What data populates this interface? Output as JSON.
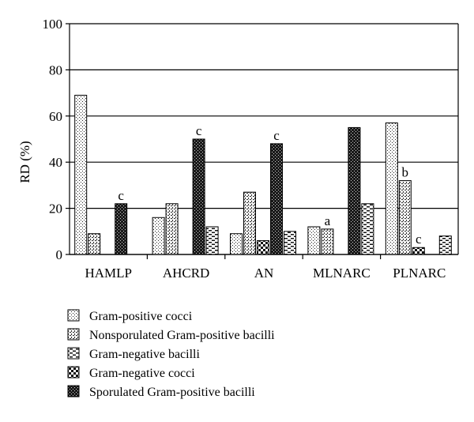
{
  "chart_data": {
    "type": "bar",
    "title": "",
    "xlabel": "",
    "ylabel": "RD (%)",
    "ylim": [
      0,
      100
    ],
    "yticks": [
      0,
      20,
      40,
      60,
      80,
      100
    ],
    "grid": true,
    "legend_position": "bottom",
    "categories": [
      "HAMLP",
      "AHCRD",
      "AN",
      "MLNARC",
      "PLNARC"
    ],
    "series_order_in_group": [
      "Gram-positive cocci",
      "Nonsporulated Gram-positive bacilli",
      "Gram-negative cocci",
      "Sporulated Gram-positive bacilli",
      "Gram-negative bacilli"
    ],
    "series": [
      {
        "name": "Gram-positive cocci",
        "pattern": "dots-fine",
        "values": [
          69,
          16,
          9,
          12,
          57
        ],
        "annotations": [
          null,
          null,
          null,
          null,
          null
        ]
      },
      {
        "name": "Nonsporulated Gram-positive bacilli",
        "pattern": "dots-medium",
        "values": [
          9,
          22,
          27,
          11,
          32
        ],
        "annotations": [
          null,
          null,
          null,
          "a",
          "b"
        ]
      },
      {
        "name": "Gram-negative cocci",
        "pattern": "checker",
        "values": [
          0,
          0,
          6,
          0,
          3
        ],
        "annotations": [
          null,
          null,
          null,
          null,
          "c"
        ]
      },
      {
        "name": "Sporulated Gram-positive bacilli",
        "pattern": "dots-dense",
        "values": [
          22,
          50,
          48,
          55,
          0
        ],
        "annotations": [
          "c",
          "c",
          "c",
          null,
          null
        ]
      },
      {
        "name": "Gram-negative bacilli",
        "pattern": "dashes",
        "values": [
          0,
          12,
          10,
          22,
          8
        ],
        "annotations": [
          null,
          null,
          null,
          null,
          null
        ]
      }
    ],
    "legend": [
      {
        "name": "Gram-positive cocci",
        "pattern": "dots-fine"
      },
      {
        "name": "Nonsporulated Gram-positive bacilli",
        "pattern": "dots-medium"
      },
      {
        "name": "Gram-negative bacilli",
        "pattern": "dashes"
      },
      {
        "name": "Gram-negative cocci",
        "pattern": "checker"
      },
      {
        "name": "Sporulated Gram-positive bacilli",
        "pattern": "dots-dense"
      }
    ]
  }
}
